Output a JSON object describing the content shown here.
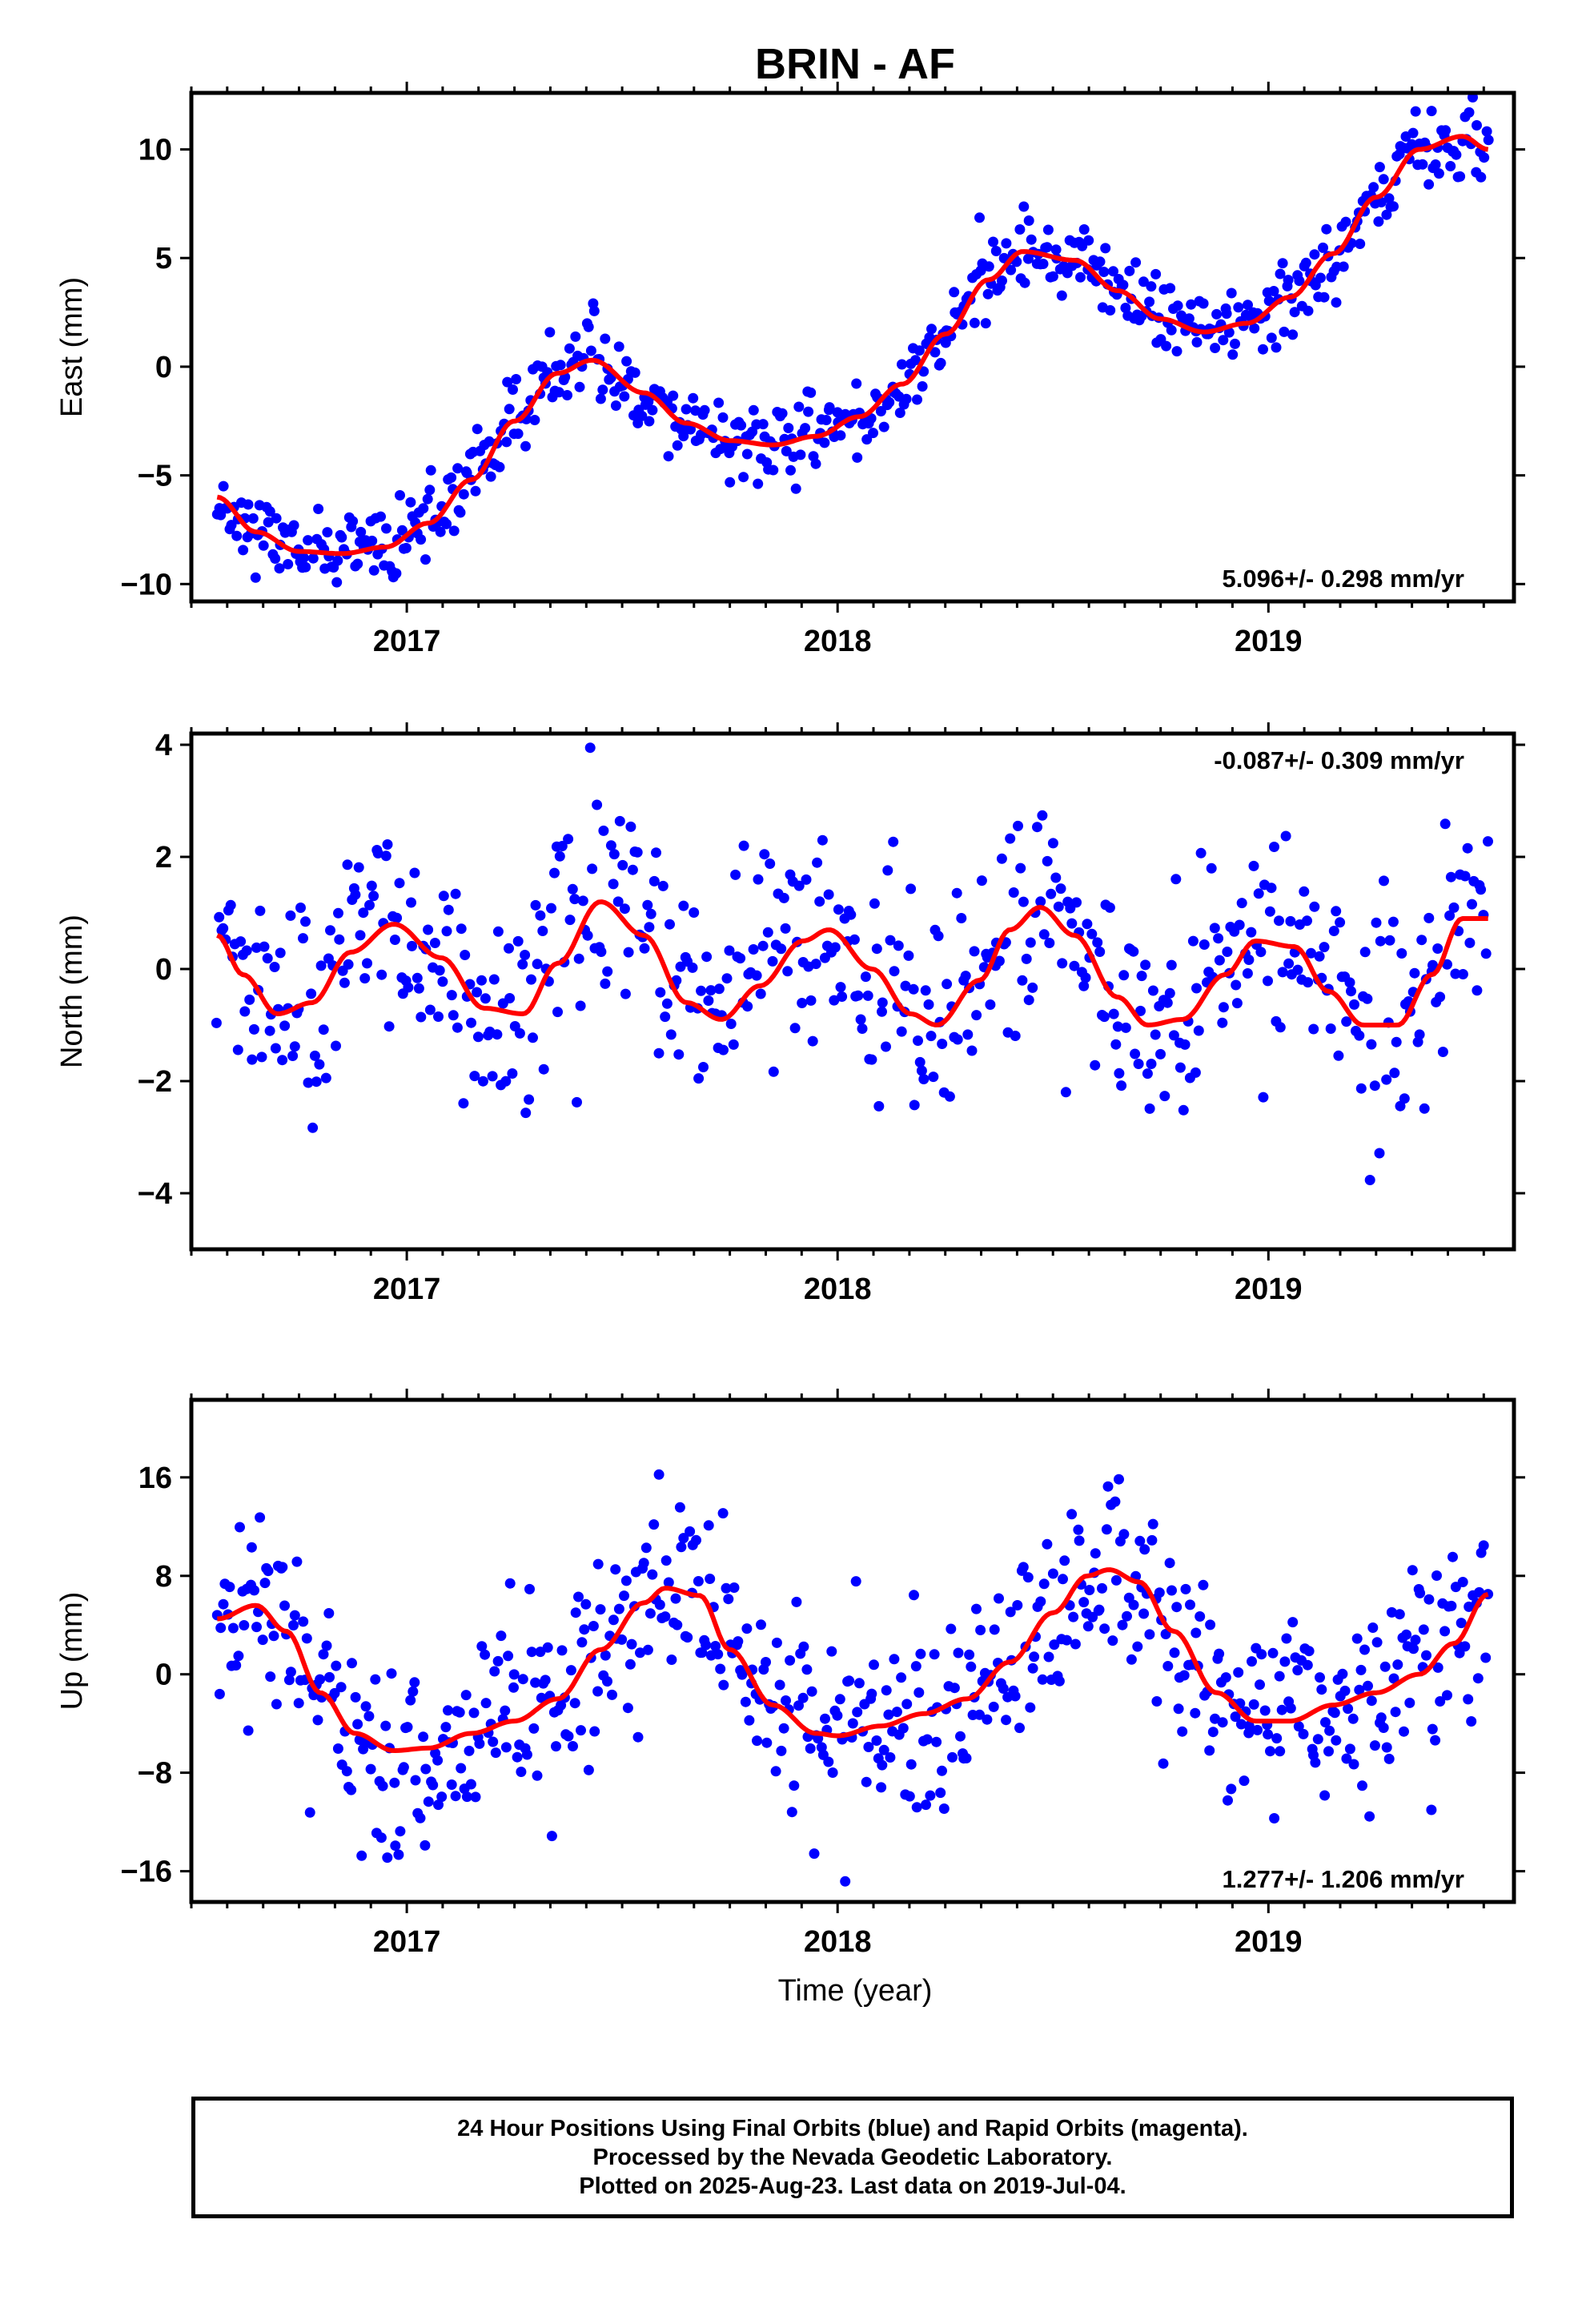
{
  "title": "BRIN - AF",
  "colors": {
    "points": "#0000ff",
    "fit": "#ff0000",
    "axes": "#000000"
  },
  "xlabel": "Time (year)",
  "footer": {
    "line1": "24 Hour Positions Using Final Orbits (blue) and Rapid Orbits (magenta).",
    "line2": "Processed by the Nevada Geodetic Laboratory.",
    "line3": "Plotted on 2025-Aug-23. Last data on 2019-Jul-04."
  },
  "chart_data": [
    {
      "type": "scatter",
      "panel": "east",
      "ylabel": "East (mm)",
      "xlim": [
        2016.5,
        2019.57
      ],
      "ylim": [
        -10.8,
        12.6
      ],
      "xticks": [
        2017,
        2018,
        2019
      ],
      "yticks": [
        -10,
        -5,
        0,
        5,
        10
      ],
      "annotation": "5.096+/- 0.298 mm/yr",
      "annotation_position": "bottom-right",
      "fit_curve": {
        "x": [
          2016.56,
          2016.65,
          2016.75,
          2016.85,
          2016.95,
          2017.05,
          2017.15,
          2017.25,
          2017.35,
          2017.43,
          2017.55,
          2017.65,
          2017.75,
          2017.85,
          2017.95,
          2018.05,
          2018.15,
          2018.25,
          2018.35,
          2018.43,
          2018.55,
          2018.65,
          2018.75,
          2018.85,
          2018.95,
          2019.05,
          2019.15,
          2019.25,
          2019.35,
          2019.45,
          2019.51
        ],
        "y": [
          -6.0,
          -7.6,
          -8.5,
          -8.6,
          -8.3,
          -7.2,
          -5.2,
          -2.5,
          -0.3,
          0.3,
          -1.2,
          -2.6,
          -3.4,
          -3.6,
          -3.2,
          -2.3,
          -0.8,
          1.5,
          4.0,
          5.3,
          4.9,
          3.5,
          2.2,
          1.6,
          2.0,
          3.2,
          5.2,
          7.8,
          10.0,
          10.6,
          10.0
        ]
      },
      "points_spec": {
        "count": 600,
        "scatter_mm": 0.9,
        "seed": 11
      }
    },
    {
      "type": "scatter",
      "panel": "north",
      "ylabel": "North (mm)",
      "xlim": [
        2016.5,
        2019.57
      ],
      "ylim": [
        -5.0,
        4.2
      ],
      "xticks": [
        2017,
        2018,
        2019
      ],
      "yticks": [
        -4,
        -2,
        0,
        2,
        4
      ],
      "annotation": "-0.087+/- 0.309 mm/yr",
      "annotation_position": "top-right",
      "fit_curve": {
        "x": [
          2016.56,
          2016.62,
          2016.7,
          2016.78,
          2016.87,
          2016.97,
          2017.08,
          2017.18,
          2017.27,
          2017.35,
          2017.45,
          2017.55,
          2017.65,
          2017.73,
          2017.82,
          2017.92,
          2017.98,
          2018.08,
          2018.17,
          2018.23,
          2018.33,
          2018.4,
          2018.47,
          2018.55,
          2018.65,
          2018.72,
          2018.8,
          2018.9,
          2018.97,
          2019.06,
          2019.14,
          2019.22,
          2019.3,
          2019.38,
          2019.45,
          2019.51
        ],
        "y": [
          0.6,
          -0.1,
          -0.8,
          -0.6,
          0.3,
          0.8,
          0.2,
          -0.7,
          -0.8,
          0.1,
          1.2,
          0.6,
          -0.6,
          -0.9,
          -0.3,
          0.5,
          0.7,
          0.0,
          -0.8,
          -1.0,
          -0.2,
          0.7,
          1.1,
          0.6,
          -0.5,
          -1.0,
          -0.9,
          -0.1,
          0.5,
          0.4,
          -0.4,
          -1.0,
          -1.0,
          -0.1,
          0.9,
          0.9
        ]
      },
      "points_spec": {
        "count": 560,
        "scatter_mm": 1.0,
        "seed": 23
      }
    },
    {
      "type": "scatter",
      "panel": "up",
      "ylabel": "Up (mm)",
      "xlim": [
        2016.5,
        2019.57
      ],
      "ylim": [
        -18.5,
        22.3
      ],
      "xticks": [
        2017,
        2018,
        2019
      ],
      "yticks": [
        -16,
        -8,
        0,
        8,
        16
      ],
      "annotation": "1.277+/- 1.206 mm/yr",
      "annotation_position": "bottom-right",
      "fit_curve": {
        "x": [
          2016.56,
          2016.65,
          2016.72,
          2016.8,
          2016.88,
          2016.97,
          2017.05,
          2017.15,
          2017.25,
          2017.35,
          2017.45,
          2017.55,
          2017.6,
          2017.68,
          2017.75,
          2017.85,
          2017.95,
          2018.0,
          2018.1,
          2018.2,
          2018.3,
          2018.4,
          2018.5,
          2018.58,
          2018.63,
          2018.7,
          2018.78,
          2018.88,
          2018.97,
          2019.05,
          2019.15,
          2019.25,
          2019.35,
          2019.43,
          2019.51
        ],
        "y": [
          4.5,
          5.6,
          3.5,
          -1.5,
          -4.8,
          -6.2,
          -6.0,
          -4.8,
          -3.8,
          -2.0,
          2.0,
          5.8,
          7.0,
          6.4,
          2.0,
          -2.5,
          -4.8,
          -5.0,
          -4.2,
          -3.2,
          -2.0,
          1.0,
          5.0,
          8.0,
          8.5,
          7.5,
          3.5,
          -1.5,
          -3.8,
          -3.8,
          -2.5,
          -1.5,
          0.0,
          2.5,
          6.5
        ]
      },
      "points_spec": {
        "count": 620,
        "scatter_mm": 4.0,
        "seed": 37
      }
    }
  ]
}
